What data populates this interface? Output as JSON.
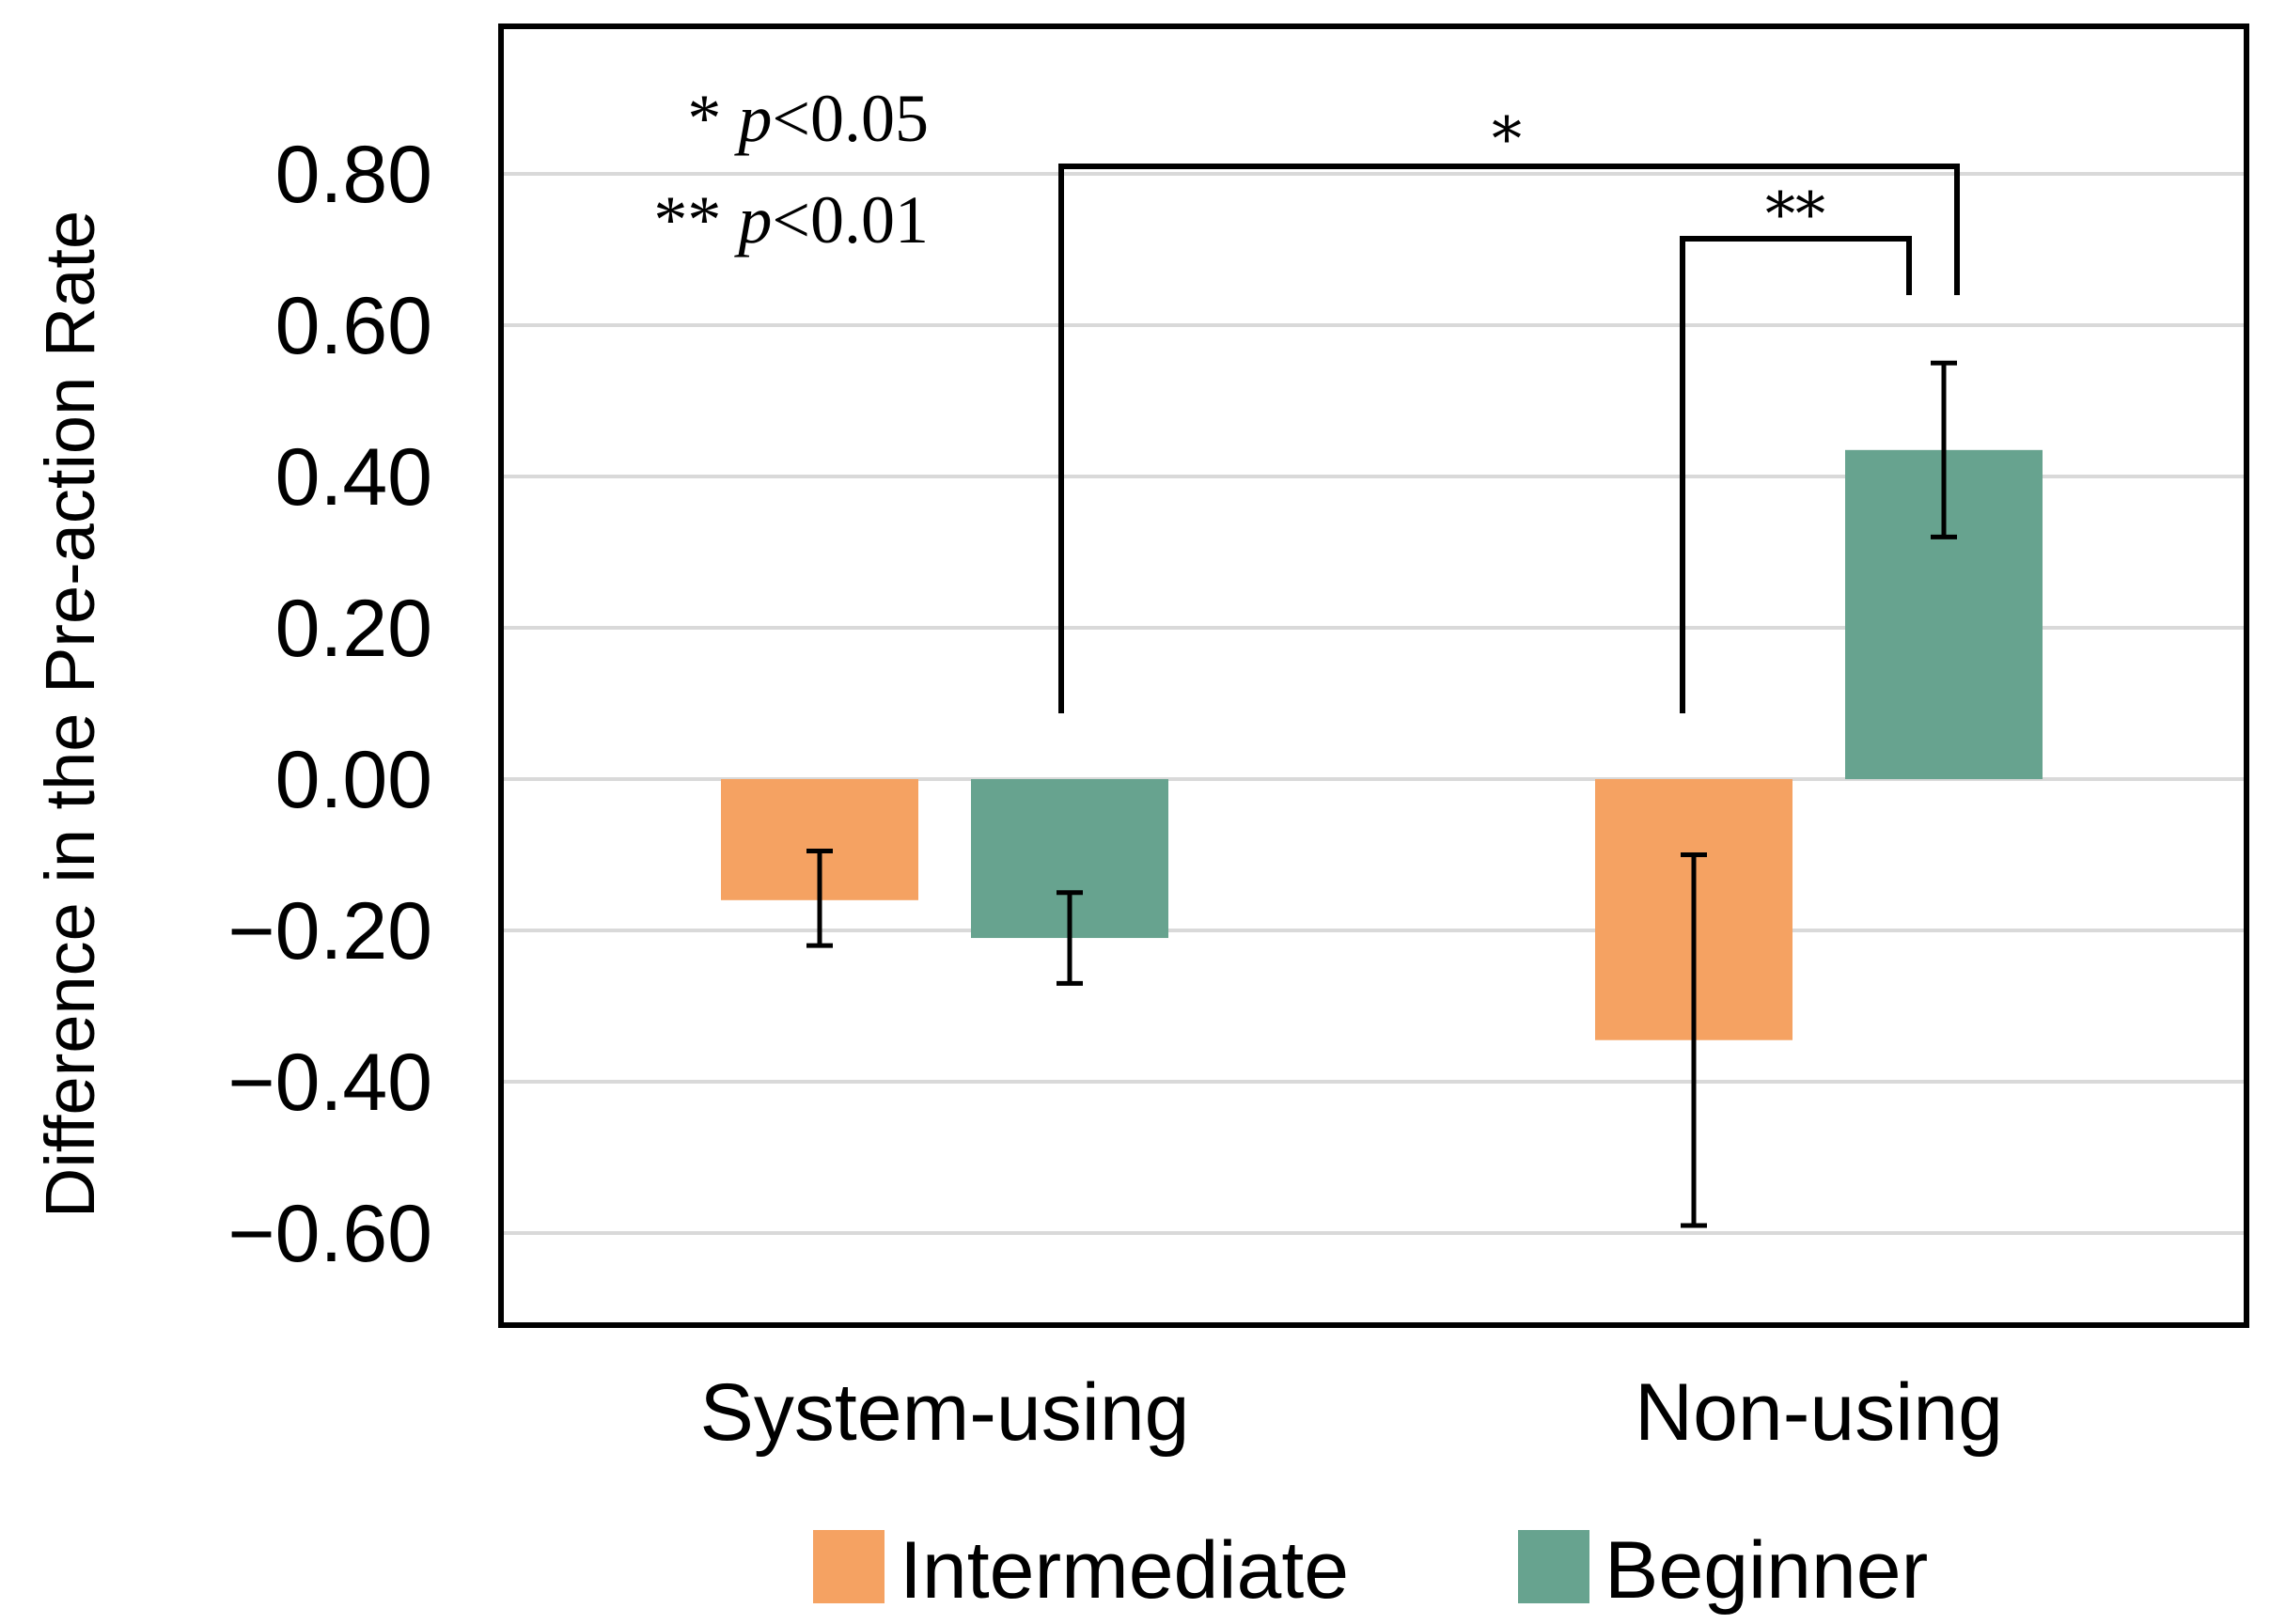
{
  "chart_data": {
    "type": "bar",
    "title": "",
    "xlabel": "",
    "ylabel": "Difference in the Pre-action Rate",
    "categories": [
      "System-using",
      "Non-using"
    ],
    "series": [
      {
        "name": "Intermediate",
        "color": "#F5A262",
        "values": [
          -0.16,
          -0.345
        ],
        "error_low": [
          -0.22,
          -0.59
        ],
        "error_high": [
          -0.095,
          -0.1
        ]
      },
      {
        "name": "Beginner",
        "color": "#67A38F",
        "values": [
          -0.21,
          0.435
        ],
        "error_low": [
          -0.27,
          0.32
        ],
        "error_high": [
          -0.15,
          0.55
        ]
      }
    ],
    "ylim": [
      -0.72,
      0.99
    ],
    "yticks": [
      0.8,
      0.6,
      0.4,
      0.2,
      0.0,
      -0.2,
      -0.4,
      -0.6
    ],
    "ytick_labels": [
      "0.80",
      "0.60",
      "0.40",
      "0.20",
      "0.00",
      "−0.20",
      "−0.40",
      "−0.60"
    ],
    "grid": true,
    "legend": [
      "Intermediate",
      "Beginner"
    ],
    "legend_position": "bottom-center",
    "significance": [
      {
        "label": "*",
        "from": "System-using Beginner",
        "to": "Non-using Beginner",
        "level": 0.81
      },
      {
        "label": "**",
        "from": "Non-using Intermediate",
        "to": "Non-using Beginner",
        "level": 0.71
      }
    ],
    "notes": [
      {
        "marker": "*",
        "p": "p",
        "rest": "<0.05"
      },
      {
        "marker": "**",
        "p": "p",
        "rest": "<0.01"
      }
    ]
  }
}
